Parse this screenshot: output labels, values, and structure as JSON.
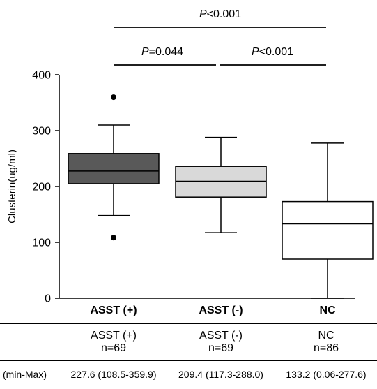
{
  "chart_data": {
    "type": "box",
    "ylabel": "Clusterin(ug/ml)",
    "ylim": [
      0,
      400
    ],
    "yticks": [
      0,
      100,
      200,
      300,
      400
    ],
    "categories": [
      "ASST (+)",
      "ASST (-)",
      "NC"
    ],
    "boxes": [
      {
        "category": "ASST (+)",
        "fill": "#595959",
        "whisker_low": 148,
        "q1": 205,
        "median": 227.6,
        "q3": 259,
        "whisker_high": 310,
        "outliers": [
          108.5,
          359.9
        ]
      },
      {
        "category": "ASST (-)",
        "fill": "#d9d9d9",
        "whisker_low": 117.3,
        "q1": 181,
        "median": 209.4,
        "q3": 236,
        "whisker_high": 288.0,
        "outliers": []
      },
      {
        "category": "NC",
        "fill": "#ffffff",
        "whisker_low": 0.06,
        "q1": 70,
        "median": 133.2,
        "q3": 173,
        "whisker_high": 277.6,
        "outliers": []
      }
    ],
    "comparisons": [
      {
        "pair": [
          "ASST (+)",
          "NC"
        ],
        "label_prefix": "P",
        "label_value": "<0.001"
      },
      {
        "pair": [
          "ASST (+)",
          "ASST (-)"
        ],
        "label_prefix": "P",
        "label_value": "=0.044"
      },
      {
        "pair": [
          "ASST (-)",
          "NC"
        ],
        "label_prefix": "P",
        "label_value": "<0.001"
      }
    ]
  },
  "table": {
    "groups": [
      {
        "name": "ASST (+)",
        "n": "n=69",
        "stat": "227.6 (108.5-359.9)"
      },
      {
        "name": "ASST (-)",
        "n": "n=69",
        "stat": "209.4 (117.3-288.0)"
      },
      {
        "name": "NC",
        "n": "n=86",
        "stat": "133.2 (0.06-277.6)"
      }
    ],
    "row_label": "(min-Max)"
  },
  "colors": {
    "axis": "#000000",
    "outlier": "#000000"
  }
}
